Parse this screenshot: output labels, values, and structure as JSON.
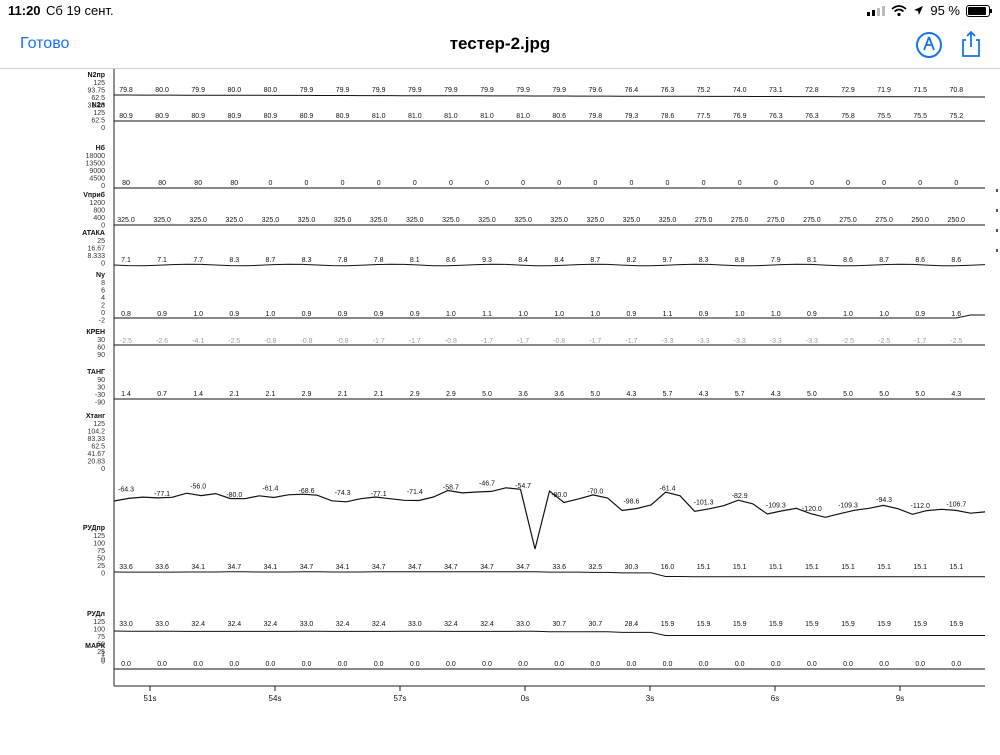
{
  "status": {
    "time": "11:20",
    "date": "Сб 19 сент.",
    "battery": "95 %"
  },
  "nav": {
    "done_label": "Готово",
    "title": "тестер-2.jpg",
    "markup_icon": "markup-pen-icon",
    "share_icon": "share-icon"
  },
  "chart_data": {
    "type": "line",
    "x_ticks": [
      "51s",
      "54s",
      "57s",
      "0s",
      "3s",
      "6s",
      "9s"
    ],
    "strips": [
      {
        "name": "N2пр",
        "scale": [
          "125",
          "93.75",
          "62.5",
          "31.25"
        ],
        "labels": [
          "79.8",
          "80.0",
          "79.9",
          "80.0",
          "80.0",
          "79.9",
          "79.9",
          "79.9",
          "79.9",
          "79.9",
          "79.9",
          "79.9",
          "79.9",
          "79.6",
          "76.4",
          "76.3",
          "75.2",
          "74.0",
          "73.1",
          "72.8",
          "72.9",
          "71.9",
          "71.5",
          "70.8"
        ]
      },
      {
        "name": "N2л",
        "scale": [
          "125",
          "62.5",
          "0"
        ],
        "labels": [
          "80.9",
          "80.9",
          "80.9",
          "80.9",
          "80.9",
          "80.9",
          "80.9",
          "81.0",
          "81.0",
          "81.0",
          "81.0",
          "81.0",
          "80.6",
          "79.8",
          "79.3",
          "78.6",
          "77.5",
          "76.9",
          "76.3",
          "76.3",
          "75.8",
          "75.5",
          "75.5",
          "75.2"
        ]
      },
      {
        "name": "Нб",
        "scale": [
          "18000",
          "13500",
          "9000",
          "4500",
          "0"
        ],
        "labels": [
          "80",
          "80",
          "80",
          "80",
          "0",
          "0",
          "0",
          "0",
          "0",
          "0",
          "0",
          "0",
          "0",
          "0",
          "0",
          "0",
          "0",
          "0",
          "0",
          "0",
          "0",
          "0",
          "0",
          "0"
        ]
      },
      {
        "name": "Vприб",
        "scale": [
          "1200",
          "800",
          "400",
          "0"
        ],
        "labels": [
          "325.0",
          "325.0",
          "325.0",
          "325.0",
          "325.0",
          "325.0",
          "325.0",
          "325.0",
          "325.0",
          "325.0",
          "325.0",
          "325.0",
          "325.0",
          "325.0",
          "325.0",
          "325.0",
          "275.0",
          "275.0",
          "275.0",
          "275.0",
          "275.0",
          "275.0",
          "250.0",
          "250.0"
        ]
      },
      {
        "name": "АТАКА",
        "scale": [
          "25",
          "16.67",
          "8.333",
          "0"
        ],
        "labels": [
          "7.1",
          "7.1",
          "7.7",
          "8.3",
          "8.7",
          "8.3",
          "7.8",
          "7.8",
          "8.1",
          "8.6",
          "9.3",
          "8.4",
          "8.4",
          "8.7",
          "8.2",
          "9.7",
          "8.3",
          "8.8",
          "7.9",
          "8.1",
          "8.6",
          "8.7",
          "8.6",
          "8.6"
        ]
      },
      {
        "name": "Ny",
        "scale": [
          "8",
          "6",
          "4",
          "2",
          "0",
          "-2"
        ],
        "labels": [
          "0.8",
          "0.9",
          "1.0",
          "0.9",
          "1.0",
          "0.9",
          "0.9",
          "0.9",
          "0.9",
          "1.0",
          "1.1",
          "1.0",
          "1.0",
          "1.0",
          "0.9",
          "1.1",
          "0.9",
          "1.0",
          "1.0",
          "0.9",
          "1.0",
          "1.0",
          "0.9",
          "1.6"
        ]
      },
      {
        "name": "КРЕН",
        "scale": [
          "30",
          "60",
          "90"
        ],
        "labels": [
          "-2.5",
          "-2.6",
          "-4.1",
          "-2.5",
          "-0.8",
          "-0.8",
          "-0.8",
          "-1.7",
          "-1.7",
          "-0.8",
          "-1.7",
          "-1.7",
          "-0.8",
          "-1.7",
          "-1.7",
          "-3.3",
          "-3.3",
          "-3.3",
          "-3.3",
          "-3.3",
          "-2.5",
          "-2.5",
          "-1.7",
          "-2.5"
        ]
      },
      {
        "name": "ТАНГ",
        "scale": [
          "90",
          "30",
          "-30",
          "-90"
        ],
        "labels": [
          "1.4",
          "0.7",
          "1.4",
          "2.1",
          "2.1",
          "2.9",
          "2.1",
          "2.1",
          "2.9",
          "2.9",
          "5.0",
          "3.6",
          "3.6",
          "5.0",
          "4.3",
          "5.7",
          "4.3",
          "5.7",
          "4.3",
          "5.0",
          "5.0",
          "5.0",
          "5.0",
          "4.3"
        ]
      },
      {
        "name": "Хтанг",
        "scale": [
          "125",
          "104.2",
          "83.33",
          "62.5",
          "41.67",
          "20.83",
          "0"
        ],
        "labels": [
          "-64.3",
          "-77.1",
          "-56.0",
          "-80.0",
          "-61.4",
          "-68.6",
          "-74.3",
          "-77.1",
          "-71.4",
          "-58.7",
          "-46.7",
          "-54.7",
          "-80.0",
          "-70.0",
          "-98.6",
          "-61.4",
          "-101.3",
          "-82.9",
          "-109.3",
          "-120.0",
          "-109.3",
          "-94.3",
          "-112.0",
          "-106.7"
        ]
      },
      {
        "name": "РУДпр",
        "scale": [
          "125",
          "100",
          "75",
          "50",
          "25",
          "0"
        ],
        "labels": [
          "33.6",
          "33.6",
          "34.1",
          "34.7",
          "34.1",
          "34.7",
          "34.1",
          "34.7",
          "34.7",
          "34.7",
          "34.7",
          "34.7",
          "33.6",
          "32.5",
          "30.3",
          "16.0",
          "15.1",
          "15.1",
          "15.1",
          "15.1",
          "15.1",
          "15.1",
          "15.1",
          "15.1"
        ]
      },
      {
        "name": "РУДл",
        "scale": [
          "125",
          "100",
          "75",
          "50",
          "25",
          "0"
        ],
        "labels": [
          "33.0",
          "33.0",
          "32.4",
          "32.4",
          "32.4",
          "33.0",
          "32.4",
          "32.4",
          "33.0",
          "32.4",
          "32.4",
          "33.0",
          "30.7",
          "30.7",
          "28.4",
          "15.9",
          "15.9",
          "15.9",
          "15.9",
          "15.9",
          "15.9",
          "15.9",
          "15.9",
          "15.9"
        ]
      },
      {
        "name": "МАРК",
        "scale": [
          "1",
          "0"
        ],
        "labels": [
          "0.0",
          "0.0",
          "0.0",
          "0.0",
          "0.0",
          "0.0",
          "0.0",
          "0.0",
          "0.0",
          "0.0",
          "0.0",
          "0.0",
          "0.0",
          "0.0",
          "0.0",
          "0.0",
          "0.0",
          "0.0",
          "0.0",
          "0.0",
          "0.0",
          "0.0",
          "0.0",
          "0.0"
        ]
      }
    ]
  }
}
